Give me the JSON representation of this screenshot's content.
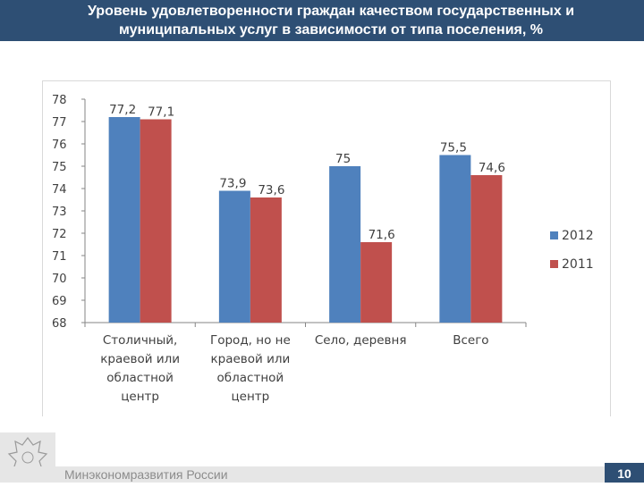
{
  "header": {
    "title_line1": "Уровень удовлетворенности граждан качеством государственных и",
    "title_line2": "муниципальных услуг в зависимости от типа поселения, %"
  },
  "footer": {
    "ministry": "Минэкономразвития России",
    "page_number": "10"
  },
  "chart_data": {
    "type": "bar",
    "categories": [
      [
        "Столичный,",
        "краевой или",
        "областной",
        "центр"
      ],
      [
        "Город, но не",
        "краевой или",
        "областной",
        "центр"
      ],
      [
        "Село, деревня"
      ],
      [
        "Всего"
      ]
    ],
    "series": [
      {
        "name": "2012",
        "color": "#4f81bd",
        "values": [
          77.2,
          73.9,
          75.0,
          75.5
        ],
        "labels": [
          "77,2",
          "73,9",
          "75",
          "75,5"
        ]
      },
      {
        "name": "2011",
        "color": "#c0504d",
        "values": [
          77.1,
          73.6,
          71.6,
          74.6
        ],
        "labels": [
          "77,1",
          "73,6",
          "71,6",
          "74,6"
        ]
      }
    ],
    "ylim": [
      68,
      78
    ],
    "yticks": [
      "68",
      "69",
      "70",
      "71",
      "72",
      "73",
      "74",
      "75",
      "76",
      "77",
      "78"
    ],
    "grid": false,
    "legend": "right"
  }
}
